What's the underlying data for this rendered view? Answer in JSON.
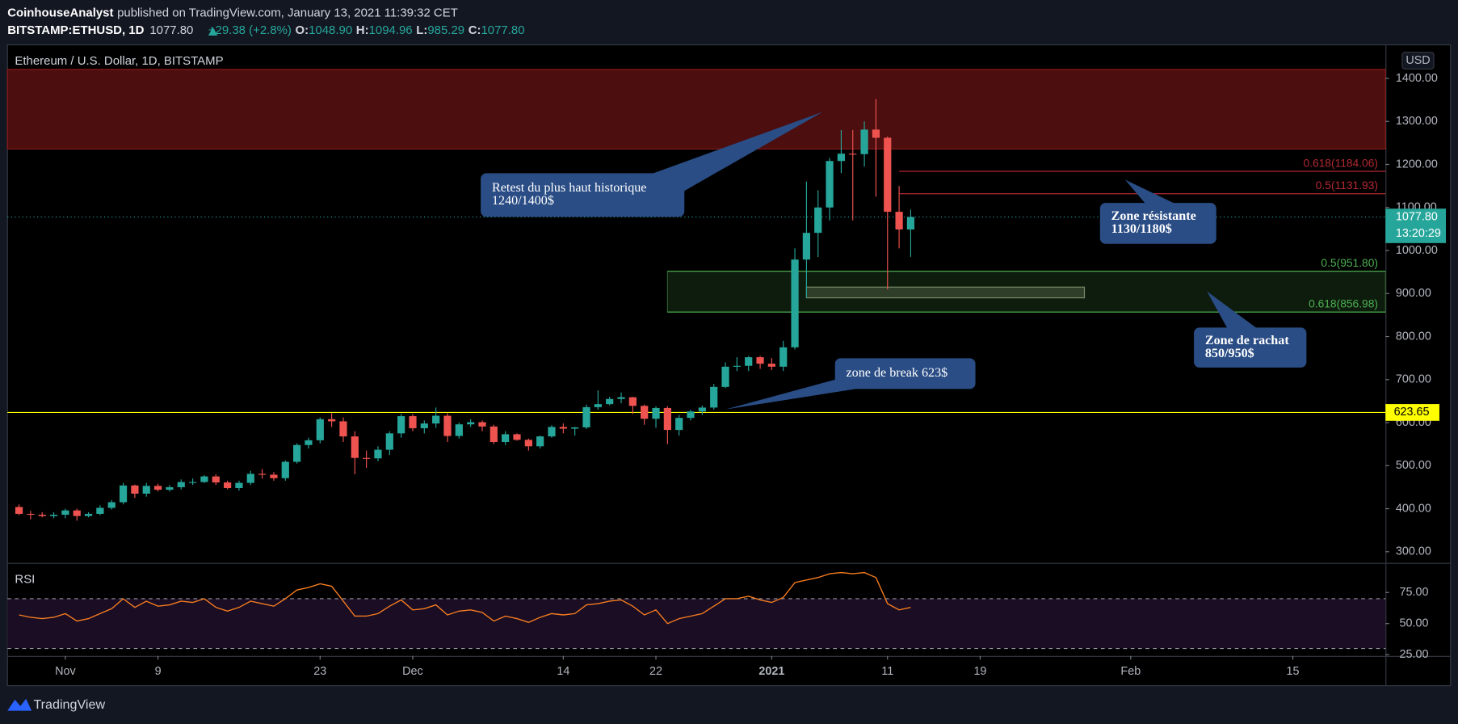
{
  "header": {
    "author": "CoinhouseAnalyst",
    "published": "published on TradingView.com, January 13, 2021 11:39:32 CET",
    "symbol": "BITSTAMP:ETHUSD, 1D",
    "last": "1077.80",
    "change": "+29.38 (+2.8%)",
    "open_label": "O:",
    "open": "1048.90",
    "high_label": "H:",
    "high": "1094.96",
    "low_label": "L:",
    "low": "985.29",
    "close_label": "C:",
    "close": "1077.80"
  },
  "footer": {
    "brand": "TradingView"
  },
  "chart_data": [
    {
      "type": "candlestick",
      "title": "Ethereum / U.S. Dollar, 1D, BITSTAMP",
      "y_unit": "USD",
      "up_color": "#26a69a",
      "down_color": "#ef5350",
      "x": [
        "10-28",
        "10-29",
        "10-30",
        "10-31",
        "11-01",
        "11-02",
        "11-03",
        "11-04",
        "11-05",
        "11-06",
        "11-07",
        "11-08",
        "11-09",
        "11-10",
        "11-11",
        "11-12",
        "11-13",
        "11-14",
        "11-15",
        "11-16",
        "11-17",
        "11-18",
        "11-19",
        "11-20",
        "11-21",
        "11-22",
        "11-23",
        "11-24",
        "11-25",
        "11-26",
        "11-27",
        "11-28",
        "11-29",
        "11-30",
        "12-01",
        "12-02",
        "12-03",
        "12-04",
        "12-05",
        "12-06",
        "12-07",
        "12-08",
        "12-09",
        "12-10",
        "12-11",
        "12-12",
        "12-13",
        "12-14",
        "12-15",
        "12-16",
        "12-17",
        "12-18",
        "12-19",
        "12-20",
        "12-21",
        "12-22",
        "12-23",
        "12-24",
        "12-25",
        "12-26",
        "12-27",
        "12-28",
        "12-29",
        "12-30",
        "12-31",
        "01-01",
        "01-02",
        "01-03",
        "01-04",
        "01-05",
        "01-06",
        "01-07",
        "01-08",
        "01-09",
        "01-10",
        "01-11",
        "01-12",
        "01-13"
      ],
      "open": [
        404,
        388,
        386,
        383,
        386,
        396,
        383,
        388,
        402,
        415,
        454,
        435,
        453,
        444,
        450,
        462,
        462,
        475,
        461,
        448,
        460,
        481,
        479,
        471,
        509,
        548,
        559,
        608,
        603,
        568,
        518,
        517,
        537,
        575,
        615,
        587,
        598,
        616,
        569,
        596,
        601,
        591,
        555,
        573,
        560,
        545,
        568,
        590,
        586,
        589,
        636,
        643,
        655,
        659,
        639,
        609,
        634,
        583,
        611,
        626,
        635,
        683,
        730,
        732,
        752,
        737,
        730,
        775,
        979,
        1041,
        1100,
        1208,
        1225,
        1224,
        1281,
        1262,
        1090,
        1048.9
      ],
      "high": [
        410,
        395,
        392,
        392,
        400,
        400,
        392,
        408,
        420,
        460,
        456,
        460,
        458,
        455,
        468,
        470,
        478,
        480,
        465,
        465,
        488,
        492,
        485,
        512,
        552,
        565,
        612,
        622,
        612,
        580,
        535,
        545,
        580,
        620,
        620,
        605,
        635,
        622,
        600,
        608,
        605,
        595,
        580,
        575,
        563,
        570,
        594,
        598,
        590,
        642,
        675,
        660,
        670,
        660,
        642,
        638,
        638,
        618,
        630,
        640,
        690,
        740,
        752,
        755,
        755,
        750,
        790,
        1005,
        1160,
        1140,
        1215,
        1280,
        1280,
        1300,
        1352,
        1265,
        1150,
        1094.96
      ],
      "low": [
        385,
        375,
        380,
        378,
        378,
        372,
        380,
        385,
        398,
        410,
        425,
        428,
        440,
        440,
        445,
        455,
        460,
        455,
        445,
        442,
        455,
        470,
        465,
        465,
        505,
        540,
        552,
        590,
        555,
        480,
        495,
        510,
        525,
        565,
        580,
        575,
        588,
        555,
        563,
        590,
        580,
        550,
        548,
        558,
        535,
        540,
        565,
        575,
        570,
        585,
        630,
        640,
        645,
        620,
        595,
        588,
        550,
        570,
        605,
        618,
        630,
        680,
        720,
        720,
        725,
        722,
        720,
        770,
        890,
        985,
        1070,
        1180,
        1070,
        1195,
        1125,
        910,
        1005,
        985.29
      ],
      "close": [
        388,
        386,
        383,
        386,
        396,
        383,
        388,
        402,
        415,
        454,
        435,
        453,
        444,
        450,
        462,
        462,
        475,
        461,
        448,
        460,
        481,
        479,
        471,
        509,
        548,
        559,
        608,
        603,
        568,
        518,
        517,
        537,
        575,
        615,
        587,
        598,
        616,
        569,
        596,
        601,
        591,
        555,
        573,
        560,
        545,
        568,
        590,
        586,
        589,
        636,
        643,
        655,
        659,
        639,
        609,
        634,
        583,
        611,
        626,
        635,
        683,
        730,
        732,
        752,
        737,
        730,
        775,
        979,
        1041,
        1100,
        1208,
        1225,
        1224,
        1281,
        1262,
        1090,
        1048.9,
        1077.8
      ],
      "xlim": [
        "10-27",
        "02-23"
      ],
      "xticks": [
        {
          "value": "11-01",
          "label": "Nov"
        },
        {
          "value": "11-09",
          "label": "9"
        },
        {
          "value": "11-23",
          "label": "23"
        },
        {
          "value": "12-01",
          "label": "Dec"
        },
        {
          "value": "12-14",
          "label": "14"
        },
        {
          "value": "12-22",
          "label": "22"
        },
        {
          "value": "01-01",
          "label": "2021"
        },
        {
          "value": "01-11",
          "label": "11"
        },
        {
          "value": "01-19",
          "label": "19"
        },
        {
          "value": "02-01",
          "label": "Feb"
        },
        {
          "value": "02-15",
          "label": "15"
        }
      ],
      "ylim": [
        274,
        1478
      ],
      "yticks": [
        {
          "value": 300,
          "label": "300.00"
        },
        {
          "value": 400,
          "label": "400.00"
        },
        {
          "value": 500,
          "label": "500.00"
        },
        {
          "value": 600,
          "label": "600.00"
        },
        {
          "value": 700,
          "label": "700.00"
        },
        {
          "value": 800,
          "label": "800.00"
        },
        {
          "value": 900,
          "label": "900.00"
        },
        {
          "value": 1000,
          "label": "1000.00"
        },
        {
          "value": 1100,
          "label": "1100.00"
        },
        {
          "value": 1200,
          "label": "1200.00"
        },
        {
          "value": 1300,
          "label": "1300.00"
        },
        {
          "value": 1400,
          "label": "1400.00"
        }
      ],
      "last_price": {
        "value": 1077.8,
        "label": "1077.80"
      },
      "countdown": "13:20:29",
      "last_color": "#26a69a",
      "level": {
        "value": 623.65,
        "label": "623.65",
        "color": "#ffff00"
      },
      "zones": [
        {
          "from": "10-27",
          "low": 1236,
          "high": 1421,
          "color": "#8b1a1a"
        },
        {
          "from": "12-23",
          "low": 856.98,
          "high": 951.8,
          "color": "#2e5e2e"
        },
        {
          "from": "01-04",
          "to": "01-28",
          "low": 890,
          "high": 915,
          "color": "#7a8f6a"
        }
      ],
      "fib": [
        {
          "from": "01-12",
          "value": 1184.06,
          "label": "0.618(1184.06)",
          "color": "#b22833"
        },
        {
          "from": "01-12",
          "value": 1131.93,
          "label": "0.5(1131.93)",
          "color": "#b22833"
        },
        {
          "from": "12-23",
          "value": 951.8,
          "label": "0.5(951.80)",
          "color": "#4caf50"
        },
        {
          "from": "12-23",
          "value": 856.98,
          "label": "0.618(856.98)",
          "color": "#4caf50"
        }
      ],
      "annotations": [
        {
          "lines": [
            "Retest du plus haut historique",
            "1240/1400$"
          ]
        },
        {
          "lines": [
            "zone de break 623$"
          ]
        },
        {
          "lines": [
            "Zone résistante",
            "1130/1180$"
          ]
        },
        {
          "lines": [
            "Zone de rachat",
            "850/950$"
          ]
        }
      ]
    },
    {
      "type": "line",
      "title": "RSI",
      "color": "#f57c1f",
      "x": [
        "10-28",
        "10-29",
        "10-30",
        "10-31",
        "11-01",
        "11-02",
        "11-03",
        "11-04",
        "11-05",
        "11-06",
        "11-07",
        "11-08",
        "11-09",
        "11-10",
        "11-11",
        "11-12",
        "11-13",
        "11-14",
        "11-15",
        "11-16",
        "11-17",
        "11-18",
        "11-19",
        "11-20",
        "11-21",
        "11-22",
        "11-23",
        "11-24",
        "11-25",
        "11-26",
        "11-27",
        "11-28",
        "11-29",
        "11-30",
        "12-01",
        "12-02",
        "12-03",
        "12-04",
        "12-05",
        "12-06",
        "12-07",
        "12-08",
        "12-09",
        "12-10",
        "12-11",
        "12-12",
        "12-13",
        "12-14",
        "12-15",
        "12-16",
        "12-17",
        "12-18",
        "12-19",
        "12-20",
        "12-21",
        "12-22",
        "12-23",
        "12-24",
        "12-25",
        "12-26",
        "12-27",
        "12-28",
        "12-29",
        "12-30",
        "12-31",
        "01-01",
        "01-02",
        "01-03",
        "01-04",
        "01-05",
        "01-06",
        "01-07",
        "01-08",
        "01-09",
        "01-10",
        "01-11",
        "01-12",
        "01-13"
      ],
      "values": [
        57,
        55,
        54,
        55,
        58,
        52,
        54,
        58,
        62,
        70,
        63,
        68,
        64,
        65,
        68,
        67,
        70,
        63,
        60,
        63,
        68,
        66,
        64,
        70,
        77,
        79,
        82,
        80,
        68,
        56,
        56,
        58,
        64,
        69,
        61,
        62,
        65,
        57,
        60,
        61,
        59,
        52,
        56,
        54,
        51,
        55,
        58,
        57,
        58,
        65,
        66,
        68,
        69,
        64,
        57,
        61,
        50,
        54,
        56,
        58,
        64,
        70,
        70,
        72,
        69,
        67,
        71,
        83,
        85,
        87,
        90,
        91,
        90,
        91,
        87,
        66,
        61,
        63
      ],
      "ylim": [
        24,
        98
      ],
      "yticks": [
        {
          "value": 25,
          "label": "25.00"
        },
        {
          "value": 50,
          "label": "50.00"
        },
        {
          "value": 75,
          "label": "75.00"
        }
      ],
      "bands": [
        30,
        70
      ]
    }
  ]
}
